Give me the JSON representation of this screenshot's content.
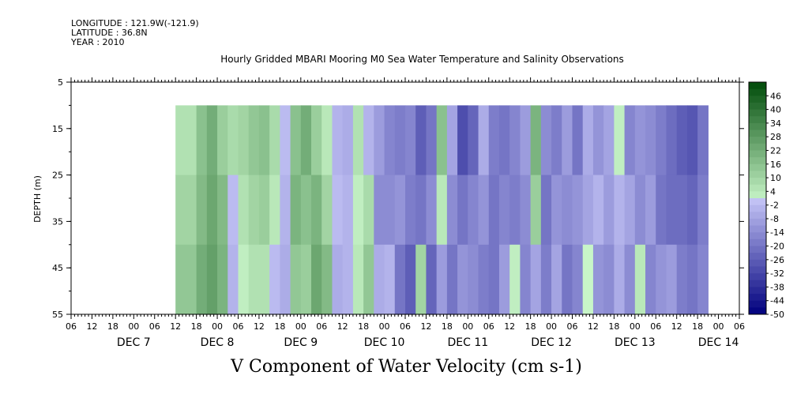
{
  "header": {
    "longitude": "LONGITUDE : 121.9W(-121.9)",
    "latitude": "LATITUDE : 36.8N",
    "year": "YEAR : 2010"
  },
  "chart_data": {
    "type": "heatmap",
    "title": "Hourly Gridded MBARI Mooring M0 Sea Water Temperature and Salinity Observations",
    "xlabel": "V Component of Water Velocity (cm s-1)",
    "ylabel": "DEPTH (m)",
    "y_ticks": [
      "5",
      "15",
      "25",
      "35",
      "45",
      "55"
    ],
    "y_range": [
      5,
      55
    ],
    "y_reversed": true,
    "x_hour_ticks": [
      "06",
      "12",
      "18",
      "00",
      "06",
      "12",
      "18",
      "00",
      "06",
      "12",
      "18",
      "00",
      "06",
      "12",
      "18",
      "00",
      "06",
      "12",
      "18",
      "00",
      "06",
      "12",
      "18",
      "00",
      "06",
      "12",
      "18",
      "00",
      "06",
      "12",
      "18",
      "00",
      "06"
    ],
    "x_date_labels": [
      "DEC  7",
      "DEC  8",
      "DEC  9",
      "DEC 10",
      "DEC 11",
      "DEC 12",
      "DEC 13",
      "DEC 14"
    ],
    "colorbar_labels": [
      "46",
      "40",
      "34",
      "28",
      "22",
      "16",
      "10",
      "4",
      "-2",
      "-8",
      "-14",
      "-20",
      "-26",
      "-32",
      "-38",
      "-44",
      "-50"
    ],
    "colorbar_range": [
      -50,
      52
    ],
    "data_depth_range": [
      10,
      55
    ],
    "column_profiles": [
      {
        "t": 0,
        "v": [
          6,
          10,
          14
        ]
      },
      {
        "t": 6,
        "v": [
          16,
          18,
          22
        ]
      },
      {
        "t": 9,
        "v": [
          22,
          24,
          26
        ]
      },
      {
        "t": 12,
        "v": [
          12,
          18,
          20
        ]
      },
      {
        "t": 15,
        "v": [
          8,
          -2,
          -4
        ]
      },
      {
        "t": 18,
        "v": [
          10,
          6,
          2
        ]
      },
      {
        "t": 21,
        "v": [
          14,
          10,
          6
        ]
      },
      {
        "t": 24,
        "v": [
          16,
          12,
          6
        ]
      },
      {
        "t": 27,
        "v": [
          8,
          4,
          -2
        ]
      },
      {
        "t": 30,
        "v": [
          -2,
          -4,
          -6
        ]
      },
      {
        "t": 33,
        "v": [
          16,
          20,
          14
        ]
      },
      {
        "t": 36,
        "v": [
          22,
          16,
          12
        ]
      },
      {
        "t": 39,
        "v": [
          12,
          20,
          24
        ]
      },
      {
        "t": 42,
        "v": [
          4,
          10,
          18
        ]
      },
      {
        "t": 45,
        "v": [
          -4,
          -2,
          -6
        ]
      },
      {
        "t": 48,
        "v": [
          -6,
          -4,
          -4
        ]
      },
      {
        "t": 51,
        "v": [
          6,
          2,
          4
        ]
      },
      {
        "t": 54,
        "v": [
          -4,
          8,
          14
        ]
      },
      {
        "t": 57,
        "v": [
          -10,
          -14,
          -6
        ]
      },
      {
        "t": 60,
        "v": [
          -16,
          -14,
          -4
        ]
      },
      {
        "t": 63,
        "v": [
          -18,
          -12,
          -20
        ]
      },
      {
        "t": 66,
        "v": [
          -16,
          -18,
          -26
        ]
      },
      {
        "t": 69,
        "v": [
          -26,
          -20,
          10
        ]
      },
      {
        "t": 72,
        "v": [
          -20,
          -14,
          -24
        ]
      },
      {
        "t": 75,
        "v": [
          16,
          4,
          -10
        ]
      },
      {
        "t": 78,
        "v": [
          -8,
          -14,
          -20
        ]
      },
      {
        "t": 81,
        "v": [
          -30,
          -20,
          -12
        ]
      },
      {
        "t": 84,
        "v": [
          -24,
          -16,
          -14
        ]
      },
      {
        "t": 87,
        "v": [
          -6,
          -12,
          -18
        ]
      },
      {
        "t": 90,
        "v": [
          -18,
          -20,
          -20
        ]
      },
      {
        "t": 93,
        "v": [
          -20,
          -16,
          -10
        ]
      },
      {
        "t": 96,
        "v": [
          -16,
          -18,
          2
        ]
      },
      {
        "t": 99,
        "v": [
          -10,
          -14,
          -16
        ]
      },
      {
        "t": 102,
        "v": [
          20,
          12,
          -8
        ]
      },
      {
        "t": 105,
        "v": [
          -14,
          -20,
          -18
        ]
      },
      {
        "t": 108,
        "v": [
          -18,
          -12,
          -8
        ]
      },
      {
        "t": 111,
        "v": [
          -10,
          -14,
          -20
        ]
      },
      {
        "t": 114,
        "v": [
          -20,
          -12,
          -16
        ]
      },
      {
        "t": 117,
        "v": [
          -6,
          -8,
          0
        ]
      },
      {
        "t": 120,
        "v": [
          -12,
          -4,
          -12
        ]
      },
      {
        "t": 123,
        "v": [
          -8,
          -10,
          -14
        ]
      },
      {
        "t": 126,
        "v": [
          2,
          -4,
          -6
        ]
      },
      {
        "t": 129,
        "v": [
          -16,
          -8,
          -14
        ]
      },
      {
        "t": 132,
        "v": [
          -12,
          -14,
          4
        ]
      },
      {
        "t": 135,
        "v": [
          -14,
          -10,
          -16
        ]
      },
      {
        "t": 138,
        "v": [
          -18,
          -20,
          -12
        ]
      },
      {
        "t": 141,
        "v": [
          -22,
          -22,
          -10
        ]
      },
      {
        "t": 144,
        "v": [
          -26,
          -22,
          -18
        ]
      },
      {
        "t": 147,
        "v": [
          -28,
          -24,
          -20
        ]
      },
      {
        "t": 150,
        "v": [
          -20,
          -18,
          -16
        ]
      }
    ]
  }
}
